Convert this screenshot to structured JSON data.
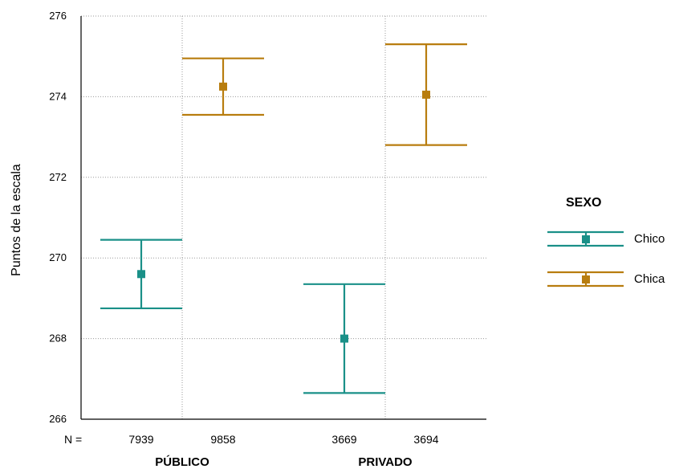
{
  "chart_data": {
    "type": "errorbar",
    "ylabel": "Puntos de la escala",
    "ylim": [
      266,
      276
    ],
    "yticks": [
      266,
      268,
      270,
      272,
      274,
      276
    ],
    "grid": true,
    "n_prefix": "N =",
    "groups": [
      {
        "label": "PÚBLICO",
        "n": [
          "7939",
          "9858"
        ]
      },
      {
        "label": "PRIVADO",
        "n": [
          "3669",
          "3694"
        ]
      }
    ],
    "legend": {
      "title": "SEXO",
      "position": "right"
    },
    "series": [
      {
        "name": "Chico",
        "color": "#1a9088",
        "points": [
          {
            "group": "PÚBLICO",
            "mean": 269.6,
            "lower": 268.75,
            "upper": 270.45
          },
          {
            "group": "PRIVADO",
            "mean": 268.0,
            "lower": 266.65,
            "upper": 269.35
          }
        ]
      },
      {
        "name": "Chica",
        "color": "#b87d0f",
        "points": [
          {
            "group": "PÚBLICO",
            "mean": 274.25,
            "lower": 273.55,
            "upper": 274.95
          },
          {
            "group": "PRIVADO",
            "mean": 274.05,
            "lower": 272.8,
            "upper": 275.3
          }
        ]
      }
    ]
  }
}
